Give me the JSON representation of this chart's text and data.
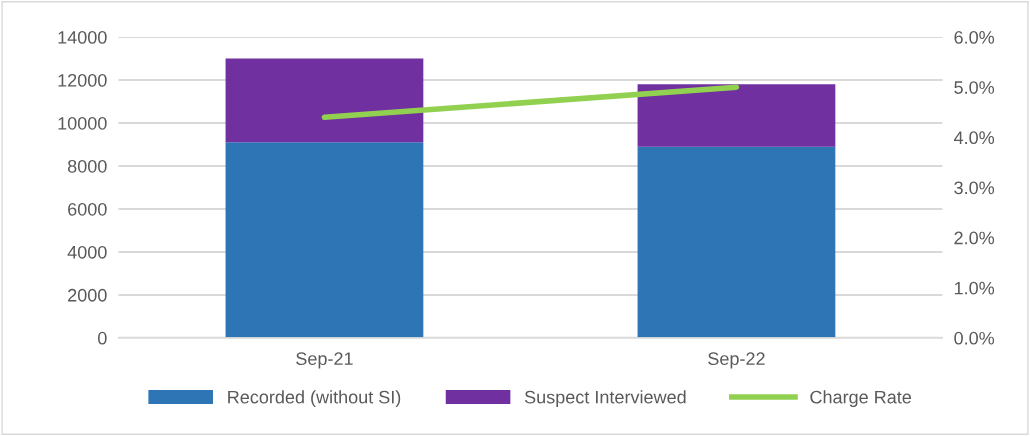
{
  "chart_data": {
    "type": "bar",
    "stacked": true,
    "categories": [
      "Sep-21",
      "Sep-22"
    ],
    "series": [
      {
        "name": "Recorded (without SI)",
        "color": "#2e75b6",
        "values": [
          9100,
          8900
        ]
      },
      {
        "name": "Suspect Interviewed",
        "color": "#7030a0",
        "values": [
          3900,
          2900
        ]
      },
      {
        "name": "Charge Rate",
        "color": "#92d050",
        "type": "line",
        "axis": "y2",
        "values": [
          4.4,
          5.0
        ]
      }
    ],
    "ylim": [
      0,
      14000
    ],
    "yticks": [
      0,
      2000,
      4000,
      6000,
      8000,
      10000,
      12000,
      14000
    ],
    "y2lim": [
      0,
      6
    ],
    "y2ticks": [
      {
        "value": 0,
        "label": "0.0%"
      },
      {
        "value": 1,
        "label": "1.0%"
      },
      {
        "value": 2,
        "label": "2.0%"
      },
      {
        "value": 3,
        "label": "3.0%"
      },
      {
        "value": 4,
        "label": "4.0%"
      },
      {
        "value": 5,
        "label": "5.0%"
      },
      {
        "value": 6,
        "label": "6.0%"
      }
    ],
    "grid": "y",
    "legend": "bottom",
    "marker": "none"
  }
}
